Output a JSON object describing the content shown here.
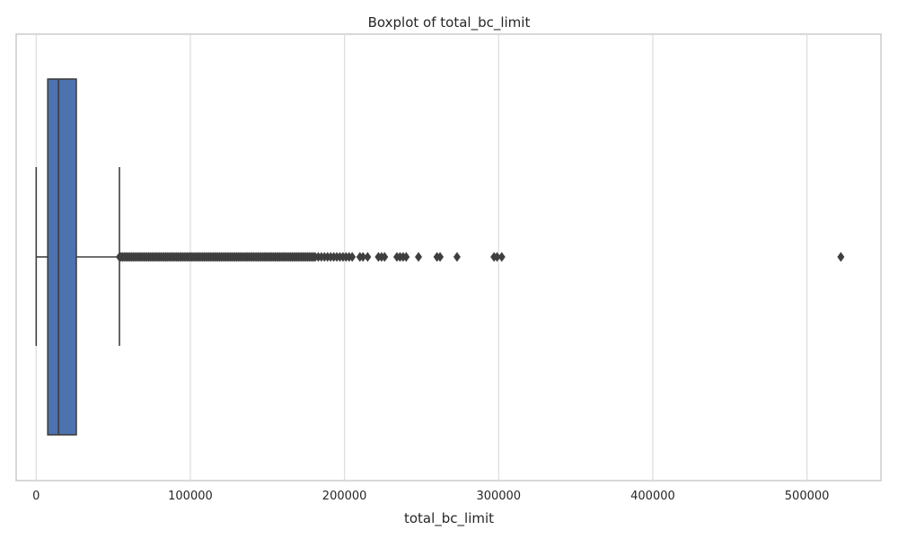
{
  "chart_data": {
    "type": "boxplot",
    "orientation": "horizontal",
    "title": "Boxplot of total_bc_limit",
    "xlabel": "total_bc_limit",
    "ylabel": "",
    "xlim": [
      -13000,
      548000
    ],
    "x_ticks": [
      0,
      100000,
      200000,
      300000,
      400000,
      500000
    ],
    "x_tick_labels": [
      "0",
      "100000",
      "200000",
      "300000",
      "400000",
      "500000"
    ],
    "grid": "vertical",
    "colors": {
      "box": "#4c72b0",
      "line": "#3f3f3f",
      "grid": "#dcdcdc",
      "frame": "#cccccc"
    },
    "box": {
      "whisker_low": 0,
      "q1": 7500,
      "median": 14500,
      "q3": 26000,
      "whisker_high": 54000
    },
    "outliers_dense_range": [
      54000,
      180000
    ],
    "outliers": [
      181000,
      183000,
      185000,
      187000,
      189000,
      191000,
      193000,
      195000,
      197000,
      199000,
      201000,
      203000,
      205000,
      210000,
      212000,
      215000,
      222000,
      224000,
      226000,
      234000,
      236000,
      238000,
      240000,
      248000,
      260000,
      262000,
      273000,
      297000,
      299000,
      302000,
      522000
    ]
  }
}
